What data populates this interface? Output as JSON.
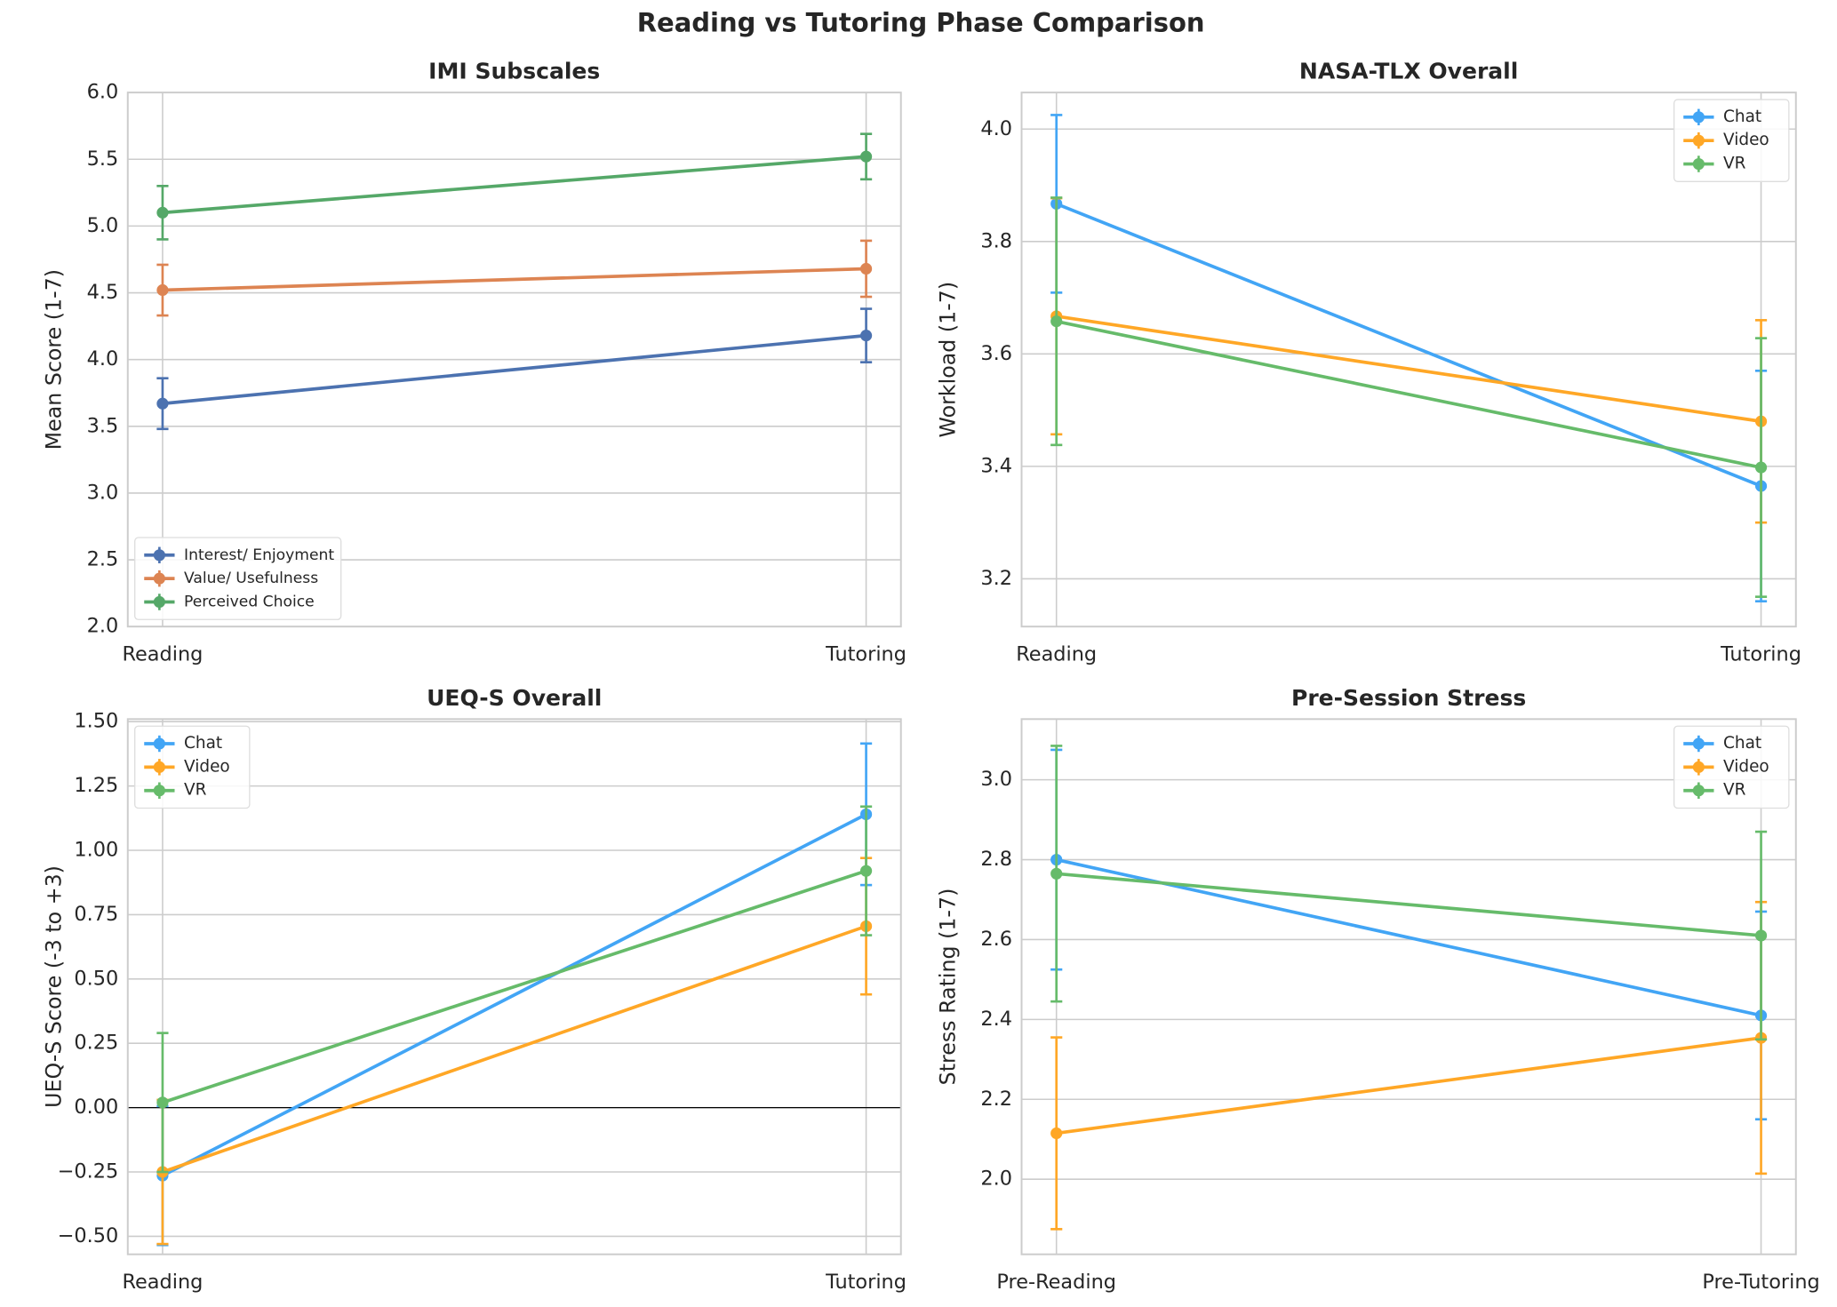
{
  "title": "Reading vs Tutoring Phase Comparison",
  "chart_data": [
    {
      "type": "line",
      "title": "IMI Subscales",
      "ylabel": "Mean Score (1-7)",
      "categories": [
        "Reading",
        "Tutoring"
      ],
      "legend": "lower left",
      "grid": true,
      "ylim": [
        2.0,
        6.0
      ],
      "yticks": [
        {
          "value": 2,
          "label": "2.0"
        },
        2.5,
        {
          "value": 3,
          "label": "3.0"
        },
        3.5,
        {
          "value": 4,
          "label": "4.0"
        },
        4.5,
        {
          "value": 5,
          "label": "5.0"
        },
        5.5,
        {
          "value": 6,
          "label": "6.0"
        }
      ],
      "series": [
        {
          "name": "Interest/ Enjoyment",
          "color": "#4c72b0",
          "values": [
            3.67,
            4.18
          ],
          "errors": [
            0.19,
            0.2
          ]
        },
        {
          "name": "Value/ Usefulness",
          "color": "#dd8452",
          "values": [
            4.52,
            4.68
          ],
          "errors": [
            0.19,
            0.21
          ]
        },
        {
          "name": "Perceived Choice",
          "color": "#55a868",
          "values": [
            5.1,
            5.52
          ],
          "errors": [
            0.2,
            0.17
          ]
        }
      ]
    },
    {
      "type": "line",
      "title": "NASA-TLX Overall",
      "ylabel": "Workload (1-7)",
      "categories": [
        "Reading",
        "Tutoring"
      ],
      "legend": "upper right",
      "grid": true,
      "ylim": [
        3.115,
        4.065
      ],
      "yticks": [
        3.2,
        3.4,
        3.6,
        3.8,
        {
          "value": 4,
          "label": "4.0"
        }
      ],
      "series": [
        {
          "name": "Chat",
          "color": "#42a5f5",
          "values": [
            3.867,
            3.365
          ],
          "errors": [
            0.158,
            0.205
          ]
        },
        {
          "name": "Video",
          "color": "#ffa726",
          "values": [
            3.667,
            3.48
          ],
          "errors": [
            0.21,
            0.18
          ]
        },
        {
          "name": "VR",
          "color": "#66bb6a",
          "values": [
            3.658,
            3.398
          ],
          "errors": [
            0.22,
            0.23
          ]
        }
      ]
    },
    {
      "type": "line",
      "title": "UEQ-S Overall",
      "ylabel": "UEQ-S Score (-3 to +3)",
      "categories": [
        "Reading",
        "Tutoring"
      ],
      "legend": "upper left",
      "grid": true,
      "zero_line": true,
      "ylim": [
        -0.57,
        1.51
      ],
      "yticks": [
        {
          "value": -0.5,
          "label": "−0.50"
        },
        {
          "value": -0.25,
          "label": "−0.25"
        },
        {
          "value": 0,
          "label": "0.00"
        },
        0.25,
        {
          "value": 0.5,
          "label": "0.50"
        },
        0.75,
        {
          "value": 1,
          "label": "1.00"
        },
        1.25,
        {
          "value": 1.5,
          "label": "1.50"
        }
      ],
      "series": [
        {
          "name": "Chat",
          "color": "#42a5f5",
          "values": [
            -0.264,
            1.14
          ],
          "errors": [
            0.27,
            0.275
          ]
        },
        {
          "name": "Video",
          "color": "#ffa726",
          "values": [
            -0.25,
            0.705
          ],
          "errors": [
            0.28,
            0.265
          ]
        },
        {
          "name": "VR",
          "color": "#66bb6a",
          "values": [
            0.02,
            0.92
          ],
          "errors": [
            0.27,
            0.25
          ]
        }
      ]
    },
    {
      "type": "line",
      "title": "Pre-Session Stress",
      "ylabel": "Stress Rating (1-7)",
      "categories": [
        "Pre-Reading",
        "Pre-Tutoring"
      ],
      "legend": "upper right",
      "grid": true,
      "ylim": [
        1.812,
        3.152
      ],
      "yticks": [
        {
          "value": 2,
          "label": "2.0"
        },
        2.2,
        2.4,
        2.6,
        2.8,
        {
          "value": 3,
          "label": "3.0"
        }
      ],
      "series": [
        {
          "name": "Chat",
          "color": "#42a5f5",
          "values": [
            2.8,
            2.41
          ],
          "errors": [
            0.275,
            0.26
          ]
        },
        {
          "name": "Video",
          "color": "#ffa726",
          "values": [
            2.115,
            2.354
          ],
          "errors": [
            0.24,
            0.34
          ]
        },
        {
          "name": "VR",
          "color": "#66bb6a",
          "values": [
            2.765,
            2.61
          ],
          "errors": [
            0.32,
            0.26
          ]
        }
      ]
    }
  ]
}
